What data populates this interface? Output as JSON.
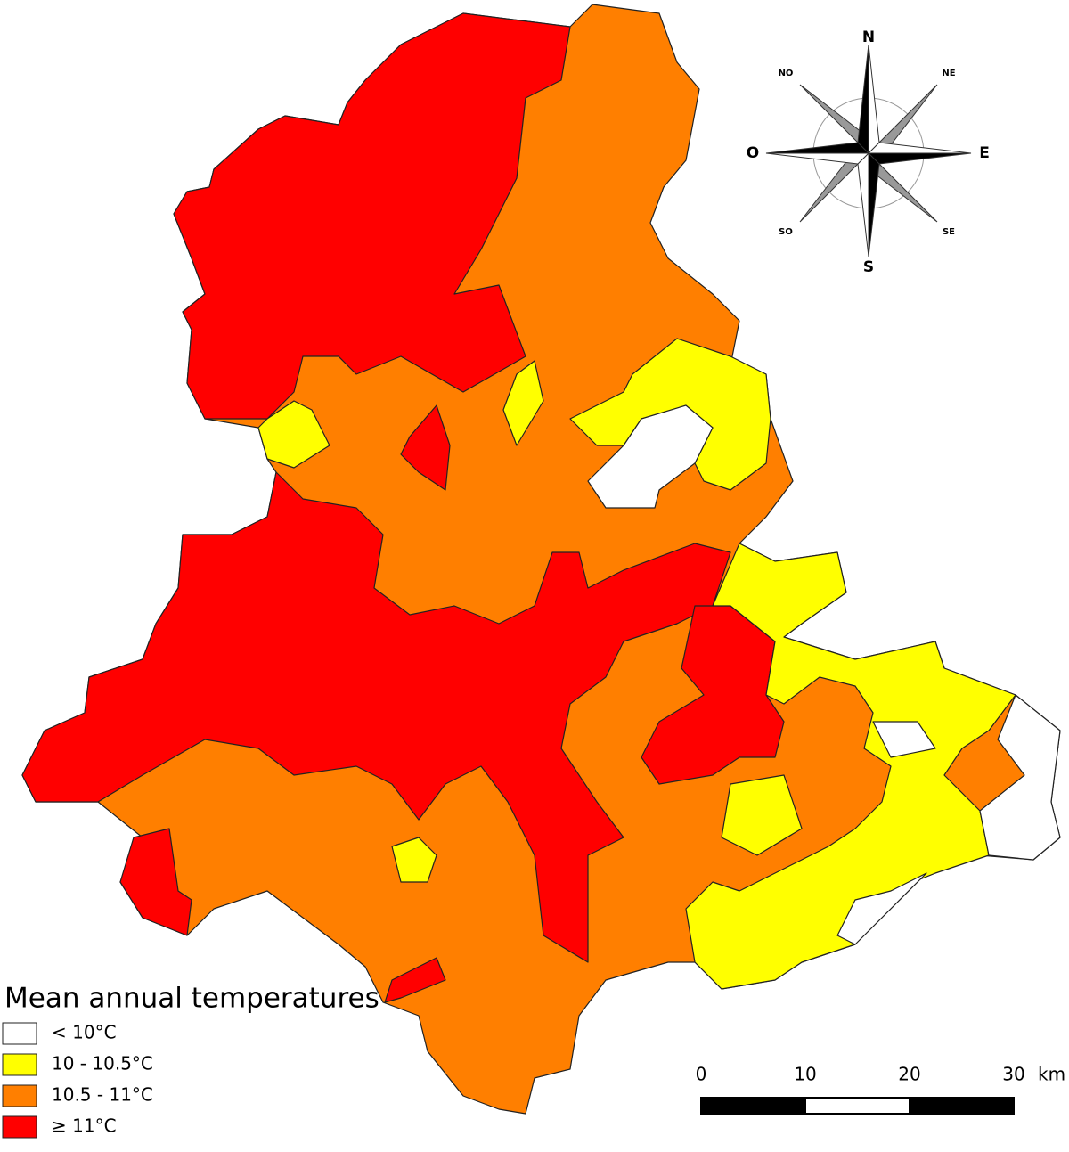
{
  "legend": {
    "title": "Mean annual temperatures",
    "classes": [
      {
        "label": "< 10°C",
        "color": "#ffffff"
      },
      {
        "label": "10 - 10.5°C",
        "color": "#ffff00"
      },
      {
        "label": "10.5 - 11°C",
        "color": "#ff7f00"
      },
      {
        "label": "≥ 11°C",
        "color": "#ff0000"
      }
    ]
  },
  "compass": {
    "north": "N",
    "north_east": "NE",
    "east": "E",
    "south_east": "SE",
    "south": "S",
    "south_west": "SO",
    "west": "O",
    "north_west": "NO"
  },
  "scale_bar": {
    "ticks": [
      0,
      10,
      20,
      30
    ],
    "unit": "km"
  }
}
